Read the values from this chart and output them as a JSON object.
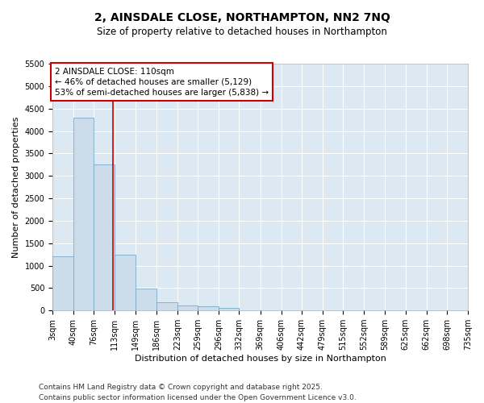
{
  "title_line1": "2, AINSDALE CLOSE, NORTHAMPTON, NN2 7NQ",
  "title_line2": "Size of property relative to detached houses in Northampton",
  "xlabel": "Distribution of detached houses by size in Northampton",
  "ylabel": "Number of detached properties",
  "footer_line1": "Contains HM Land Registry data © Crown copyright and database right 2025.",
  "footer_line2": "Contains public sector information licensed under the Open Government Licence v3.0.",
  "annotation_title": "2 AINSDALE CLOSE: 110sqm",
  "annotation_line1": "← 46% of detached houses are smaller (5,129)",
  "annotation_line2": "53% of semi-detached houses are larger (5,838) →",
  "property_size": 110,
  "bar_edges": [
    3,
    40,
    76,
    113,
    149,
    186,
    223,
    259,
    296,
    332,
    369,
    406,
    442,
    479,
    515,
    552,
    589,
    625,
    662,
    698,
    735
  ],
  "bar_heights": [
    1200,
    4300,
    3250,
    1250,
    480,
    190,
    120,
    100,
    50,
    0,
    0,
    0,
    0,
    0,
    0,
    0,
    0,
    0,
    0,
    0
  ],
  "bar_color": "#cddceb",
  "bar_edgecolor": "#7aaac8",
  "vline_color": "#cc0000",
  "annotation_box_edgecolor": "#cc0000",
  "background_color": "#dce8f2",
  "grid_color": "#ffffff",
  "ylim_max": 5500,
  "ytick_step": 500,
  "title_fontsize": 10,
  "subtitle_fontsize": 8.5,
  "label_fontsize": 8,
  "tick_fontsize": 7,
  "annotation_fontsize": 7.5,
  "footer_fontsize": 6.5
}
